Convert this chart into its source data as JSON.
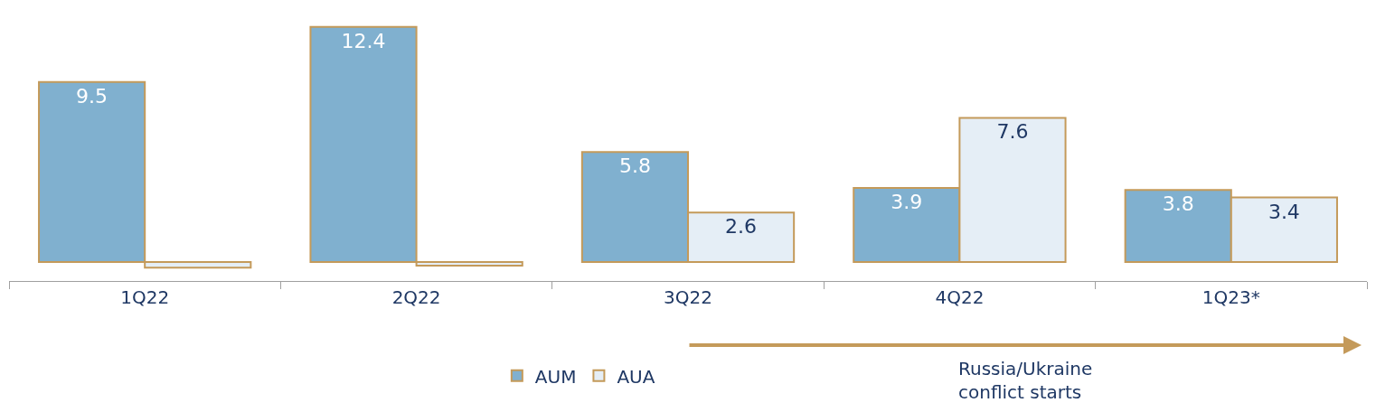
{
  "chart_data": {
    "type": "bar",
    "categories": [
      "1Q22",
      "2Q22",
      "3Q22",
      "4Q22",
      "1Q23*"
    ],
    "series": [
      {
        "name": "AUM",
        "color": "#80b0cf",
        "values": [
          9.5,
          12.4,
          5.8,
          3.9,
          3.8
        ],
        "value_labels": [
          "9.5",
          "12.4",
          "5.8",
          "3.9",
          "3.8"
        ]
      },
      {
        "name": "AUA",
        "color": "#e5eef6",
        "values": [
          -0.3,
          -0.2,
          2.6,
          7.6,
          3.4
        ],
        "value_labels": [
          null,
          null,
          "2.6",
          "7.6",
          "3.4"
        ]
      }
    ],
    "annotations": [
      "Russia/Ukraine\nconflict starts"
    ],
    "legend": "bottom"
  }
}
